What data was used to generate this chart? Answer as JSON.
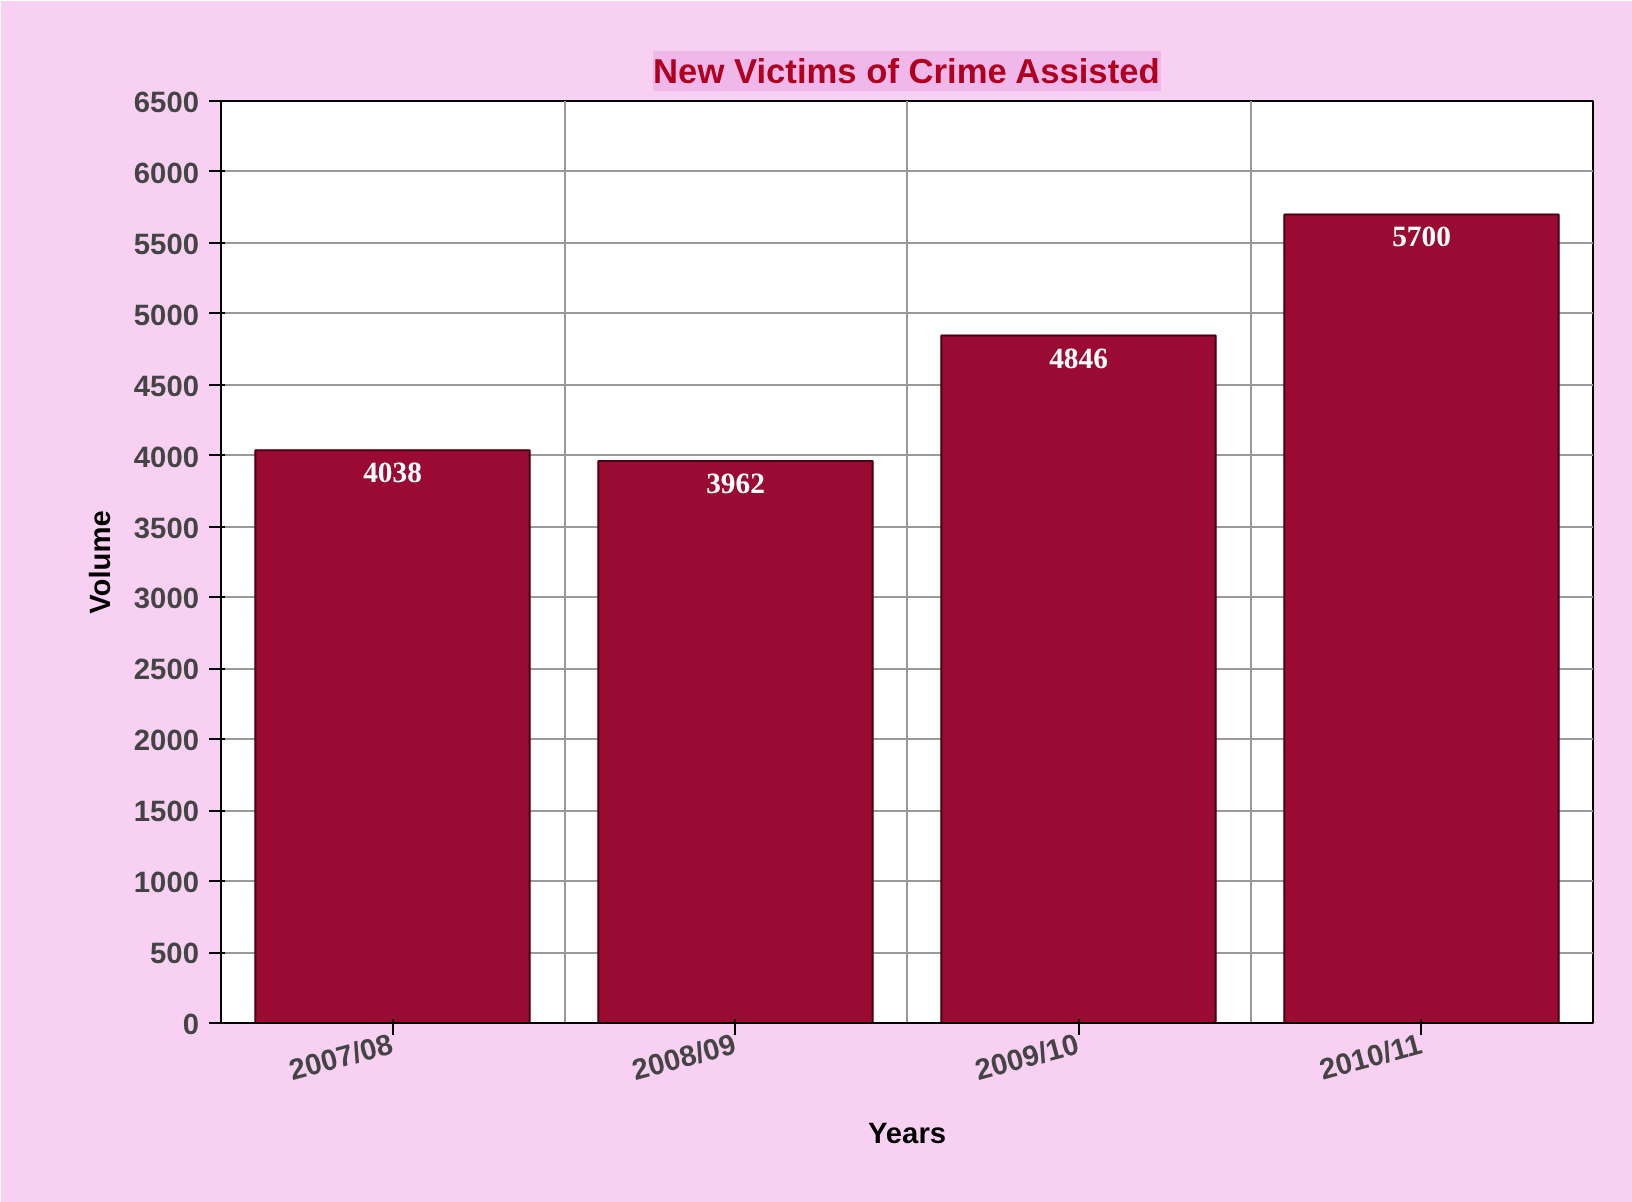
{
  "chart_data": {
    "type": "bar",
    "title": "New Victims of Crime Assisted",
    "xlabel": "Years",
    "ylabel": "Volume",
    "categories": [
      "2007/08",
      "2008/09",
      "2009/10",
      "2010/11"
    ],
    "values": [
      4038,
      3962,
      4846,
      5700
    ],
    "color": "#9b0a32",
    "ylim": [
      0,
      6500
    ],
    "yticks": [
      0,
      500,
      1000,
      1500,
      2000,
      2500,
      3000,
      3500,
      4000,
      4500,
      5000,
      5500,
      6000,
      6500
    ],
    "grid": true,
    "data_labels": true
  }
}
